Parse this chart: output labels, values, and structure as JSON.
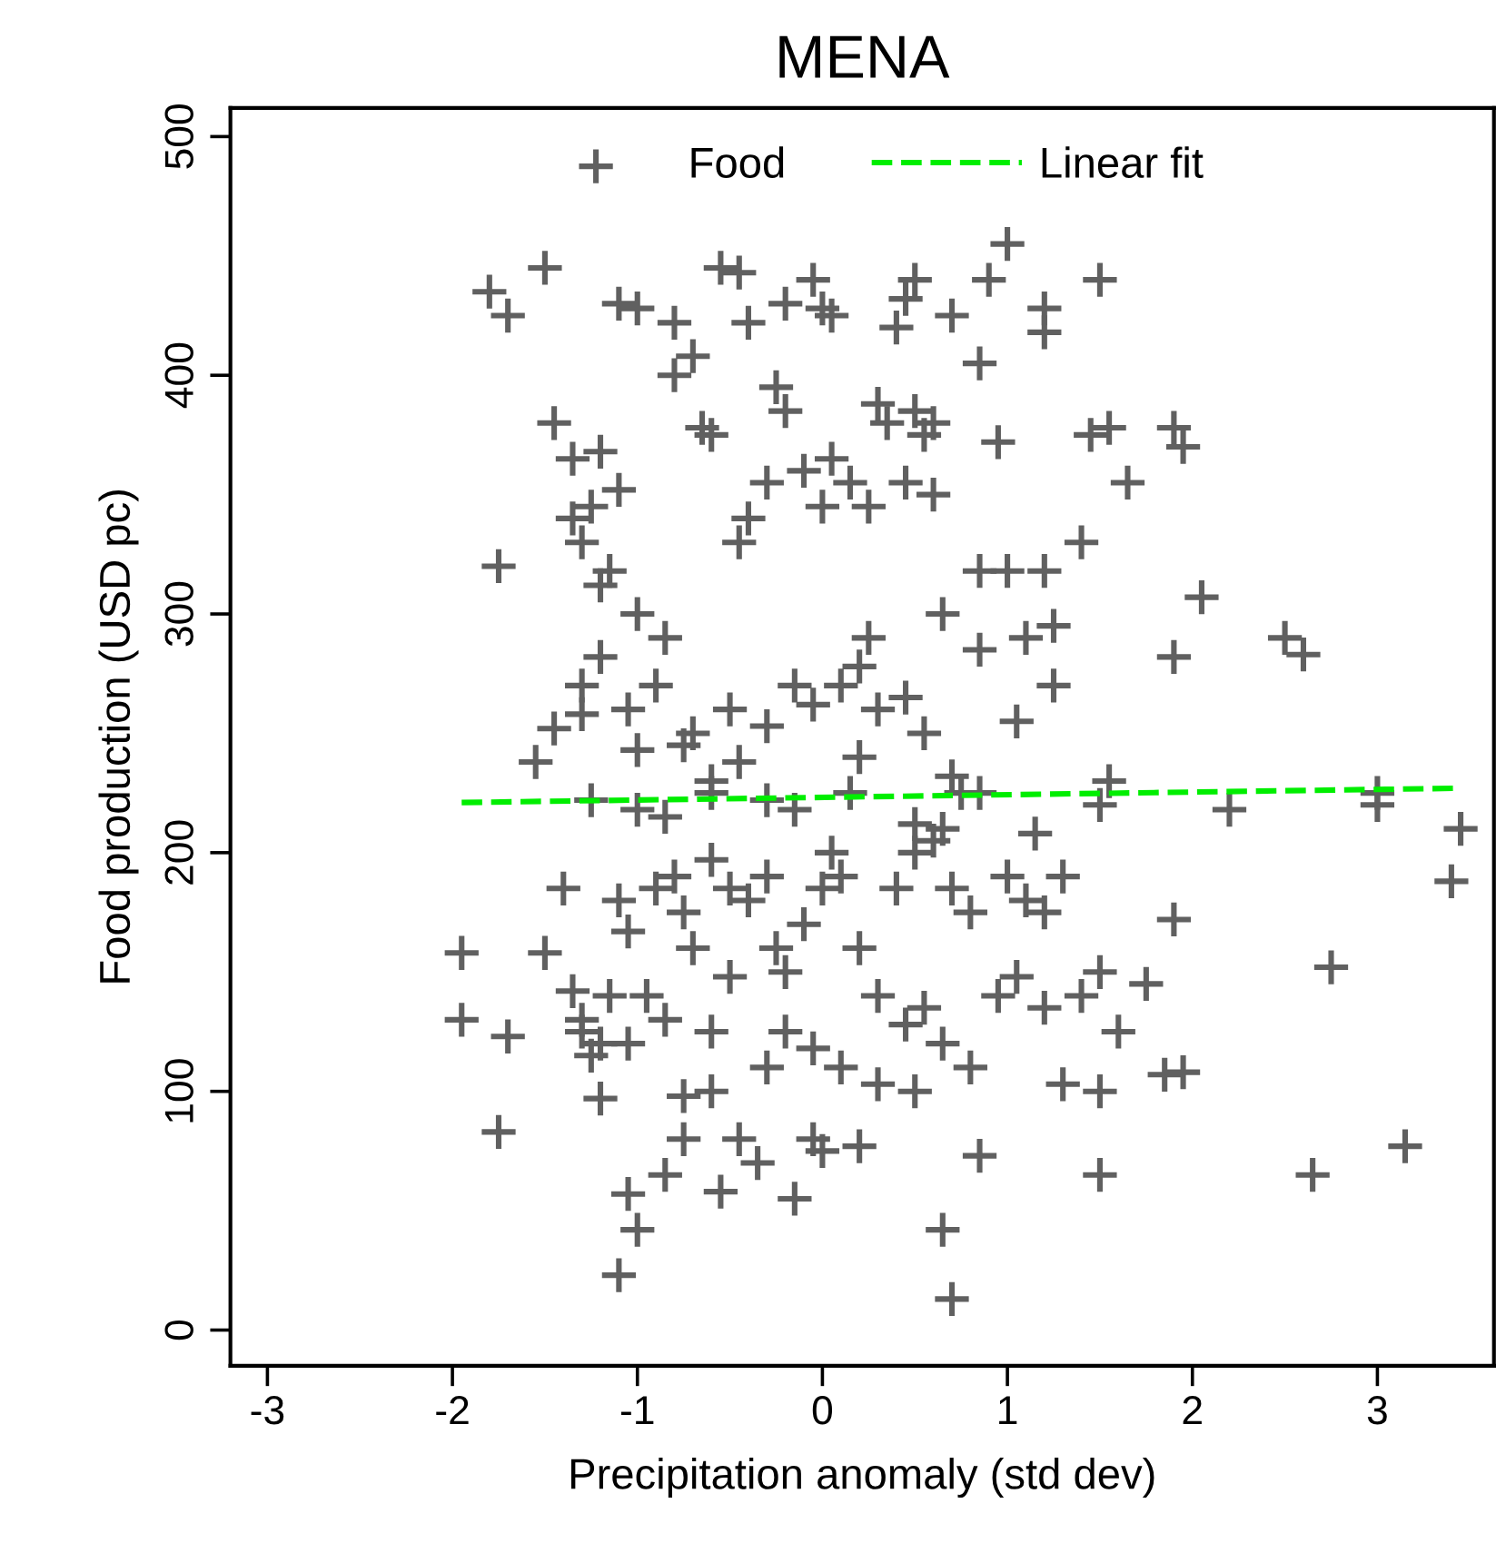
{
  "chart_data": {
    "type": "scatter",
    "title": "MENA",
    "xlabel": "Precipitation anomaly (std dev)",
    "ylabel": "Food production (USD pc)",
    "xlim": [
      -3.2,
      3.63
    ],
    "ylim": [
      -15,
      512
    ],
    "xticks": [
      -3,
      -2,
      -1,
      0,
      1,
      2,
      3
    ],
    "yticks": [
      0,
      100,
      200,
      300,
      400,
      500
    ],
    "grid": false,
    "legend": "top",
    "series": [
      {
        "name": "Food",
        "marker": "cross",
        "color": "#606060",
        "x": [
          -1.8,
          -1.7,
          -1.5,
          -1.1,
          -1.0,
          -0.8,
          -0.8,
          -0.7,
          -0.55,
          -0.45,
          -0.4,
          -0.2,
          -0.05,
          0.0,
          0.05,
          0.4,
          0.45,
          0.5,
          0.7,
          0.85,
          1.0,
          0.9,
          1.2,
          1.2,
          1.5,
          1.9,
          1.95,
          -1.75,
          -1.45,
          -1.35,
          -1.25,
          -1.2,
          -1.1,
          -1.35,
          -1.3,
          -1.15,
          -1.2,
          -1.0,
          -0.85,
          -0.6,
          -0.65,
          -0.4,
          -0.45,
          -0.3,
          -0.25,
          -0.2,
          -0.1,
          0.0,
          0.05,
          0.15,
          0.25,
          0.3,
          0.35,
          0.5,
          0.55,
          0.6,
          0.45,
          0.6,
          0.95,
          1.2,
          1.4,
          1.65,
          1.55,
          2.05,
          2.5,
          2.6,
          1.9,
          1.25,
          1.1,
          1.45,
          -1.3,
          -1.3,
          -1.2,
          -1.05,
          -0.9,
          -0.75,
          -0.7,
          -0.5,
          -0.45,
          -0.3,
          -0.15,
          -0.05,
          0.1,
          0.2,
          0.25,
          0.3,
          0.45,
          0.55,
          0.7,
          0.75,
          0.85,
          1.05,
          1.25,
          1.5,
          1.55,
          -1.55,
          -1.45,
          -1.0,
          -0.6,
          0.2,
          0.65,
          0.85,
          1.0,
          -1.25,
          -1.0,
          -0.85,
          -0.6,
          -0.3,
          -0.15,
          0.15,
          0.5,
          0.65,
          0.85,
          1.15,
          2.2,
          3.0,
          3.0,
          3.45,
          3.4,
          -1.95,
          -1.95,
          -1.7,
          -1.75,
          -1.5,
          -1.4,
          -1.35,
          -1.3,
          -1.25,
          -1.2,
          -1.15,
          -1.1,
          -1.05,
          -0.9,
          -0.8,
          -0.75,
          -0.7,
          -0.6,
          -0.5,
          -0.4,
          -0.3,
          -0.25,
          -0.2,
          -0.1,
          0.0,
          0.05,
          0.1,
          0.2,
          0.3,
          0.4,
          0.5,
          0.6,
          0.7,
          0.8,
          1.0,
          1.1,
          1.3,
          1.2,
          -0.95,
          -0.85,
          -0.6,
          -0.5,
          -0.3,
          -0.2,
          -0.05,
          0.1,
          0.3,
          0.45,
          0.55,
          0.65,
          0.8,
          0.95,
          1.05,
          1.2,
          1.4,
          1.5,
          1.6,
          1.75,
          1.9,
          1.85,
          1.95,
          1.5,
          1.3,
          2.75,
          -1.05,
          -1.2,
          -1.3,
          -1.05,
          -1.0,
          -1.1,
          -0.85,
          -0.75,
          -0.55,
          -0.45,
          -0.35,
          -0.15,
          -0.05,
          0.0,
          0.2,
          -0.6,
          -0.75,
          0.5,
          0.65,
          0.7,
          0.85,
          1.5,
          2.65,
          3.15
        ],
        "values": [
          435,
          425,
          445,
          430,
          428,
          422,
          400,
          408,
          445,
          443,
          422,
          430,
          440,
          428,
          425,
          420,
          432,
          440,
          425,
          405,
          455,
          440,
          428,
          418,
          440,
          378,
          370,
          320,
          380,
          365,
          345,
          368,
          352,
          340,
          330,
          318,
          312,
          300,
          290,
          375,
          378,
          340,
          330,
          355,
          395,
          385,
          360,
          345,
          365,
          355,
          345,
          388,
          380,
          385,
          375,
          350,
          355,
          380,
          372,
          318,
          330,
          355,
          378,
          307,
          290,
          283,
          282,
          295,
          290,
          375,
          270,
          258,
          282,
          260,
          270,
          245,
          250,
          260,
          238,
          253,
          270,
          262,
          270,
          278,
          290,
          260,
          265,
          250,
          232,
          225,
          285,
          255,
          270,
          220,
          230,
          238,
          252,
          243,
          230,
          240,
          300,
          318,
          318,
          222,
          218,
          215,
          225,
          222,
          218,
          225,
          212,
          210,
          225,
          208,
          218,
          225,
          220,
          210,
          188,
          158,
          130,
          123,
          83,
          158,
          185,
          142,
          130,
          115,
          97,
          140,
          180,
          167,
          185,
          190,
          175,
          160,
          197,
          185,
          180,
          190,
          160,
          150,
          170,
          185,
          200,
          190,
          160,
          140,
          185,
          200,
          205,
          185,
          175,
          190,
          180,
          190,
          175,
          140,
          130,
          125,
          148,
          110,
          125,
          118,
          110,
          103,
          128,
          135,
          120,
          110,
          140,
          148,
          135,
          140,
          150,
          125,
          145,
          172,
          107,
          108,
          100,
          103,
          152,
          120,
          120,
          125,
          57,
          42,
          23,
          65,
          80,
          58,
          80,
          70,
          55,
          80,
          75,
          77,
          100,
          98,
          100,
          42,
          13,
          73,
          65,
          65,
          77
        ]
      },
      {
        "name": "Linear fit",
        "type": "line",
        "line_style": "dashed",
        "color": "#00ee00",
        "x": [
          -1.95,
          3.45
        ],
        "values": [
          221,
          227
        ]
      }
    ]
  }
}
